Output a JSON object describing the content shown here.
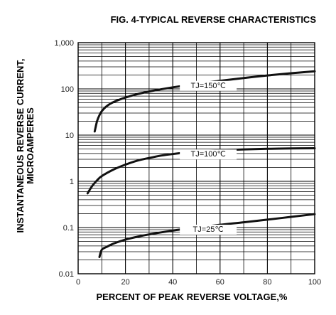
{
  "chart_data": {
    "type": "line",
    "title": "FIG. 4-TYPICAL REVERSE CHARACTERISTICS",
    "xlabel": "PERCENT OF PEAK REVERSE VOLTAGE,%",
    "ylabel": [
      "INSTANTANEOUS REVERSE CURRENT,",
      "MICROAMPERES"
    ],
    "x_scale": "linear",
    "y_scale": "log",
    "xlim": [
      0,
      100
    ],
    "ylim": [
      0.01,
      1000
    ],
    "x_ticks": [
      "0",
      "20",
      "40",
      "60",
      "80",
      "100"
    ],
    "y_ticks": [
      "0.01",
      "0.1",
      "1",
      "10",
      "100",
      "1,000"
    ],
    "grid": true,
    "series": [
      {
        "name": "TJ=150℃",
        "color": "#111111",
        "points": [
          [
            7,
            12
          ],
          [
            8,
            20
          ],
          [
            9,
            27
          ],
          [
            10,
            33
          ],
          [
            12,
            42
          ],
          [
            15,
            52
          ],
          [
            20,
            65
          ],
          [
            25,
            77
          ],
          [
            30,
            88
          ],
          [
            40,
            108
          ],
          [
            50,
            128
          ],
          [
            60,
            150
          ],
          [
            70,
            172
          ],
          [
            80,
            195
          ],
          [
            90,
            218
          ],
          [
            100,
            240
          ]
        ]
      },
      {
        "name": "TJ=100℃",
        "color": "#111111",
        "points": [
          [
            4,
            0.55
          ],
          [
            6,
            0.8
          ],
          [
            8,
            1.05
          ],
          [
            10,
            1.3
          ],
          [
            15,
            1.8
          ],
          [
            20,
            2.3
          ],
          [
            25,
            2.8
          ],
          [
            30,
            3.2
          ],
          [
            35,
            3.6
          ],
          [
            40,
            3.9
          ],
          [
            50,
            4.4
          ],
          [
            60,
            4.7
          ],
          [
            70,
            4.9
          ],
          [
            80,
            5.05
          ],
          [
            90,
            5.15
          ],
          [
            100,
            5.2
          ]
        ]
      },
      {
        "name": "TJ=25℃",
        "color": "#111111",
        "points": [
          [
            9,
            0.023
          ],
          [
            10,
            0.033
          ],
          [
            12,
            0.038
          ],
          [
            15,
            0.045
          ],
          [
            20,
            0.055
          ],
          [
            25,
            0.063
          ],
          [
            30,
            0.071
          ],
          [
            40,
            0.086
          ],
          [
            50,
            0.1
          ],
          [
            60,
            0.115
          ],
          [
            70,
            0.13
          ],
          [
            80,
            0.148
          ],
          [
            90,
            0.17
          ],
          [
            100,
            0.195
          ]
        ]
      }
    ]
  }
}
